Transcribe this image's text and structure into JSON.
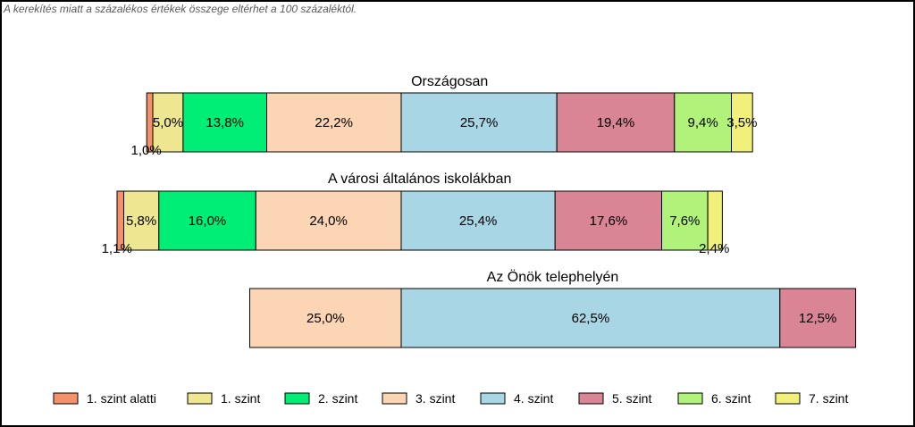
{
  "note": "A kerekítés miatt a  százalékos értékek összege eltérhet a 100 százaléktól.",
  "chart_data": {
    "type": "bar",
    "orientation": "horizontal",
    "stacked": true,
    "categories": [
      "1. szint alatti",
      "1. szint",
      "2. szint",
      "3. szint",
      "4. szint",
      "5. szint",
      "6. szint",
      "7. szint"
    ],
    "colors": [
      "#F4916A",
      "#EEE690",
      "#00EE76",
      "#FCD5B4",
      "#A9D6E5",
      "#D98596",
      "#B0F27A",
      "#F0F07A"
    ],
    "series": [
      {
        "name": "Országosan",
        "values": [
          1.0,
          5.0,
          13.8,
          22.2,
          25.7,
          19.4,
          9.4,
          3.5
        ],
        "labels": [
          "1,0%",
          "5,0%",
          "13,8%",
          "22,2%",
          "25,7%",
          "19,4%",
          "9,4%",
          "3,5%"
        ]
      },
      {
        "name": "A városi általános iskolákban",
        "values": [
          1.1,
          5.8,
          16.0,
          24.0,
          25.4,
          17.6,
          7.6,
          2.4
        ],
        "labels": [
          "1,1%",
          "5,8%",
          "16,0%",
          "24,0%",
          "25,4%",
          "17,6%",
          "7,6%",
          "2,4%"
        ]
      },
      {
        "name": "Az Önök telephelyén",
        "values": [
          0,
          0,
          0,
          25.0,
          62.5,
          12.5,
          0,
          0
        ],
        "labels": [
          "",
          "",
          "",
          "25,0%",
          "62,5%",
          "12,5%",
          "",
          ""
        ]
      }
    ],
    "alignment": "centered between level 3 and level 4",
    "legend_position": "bottom"
  }
}
